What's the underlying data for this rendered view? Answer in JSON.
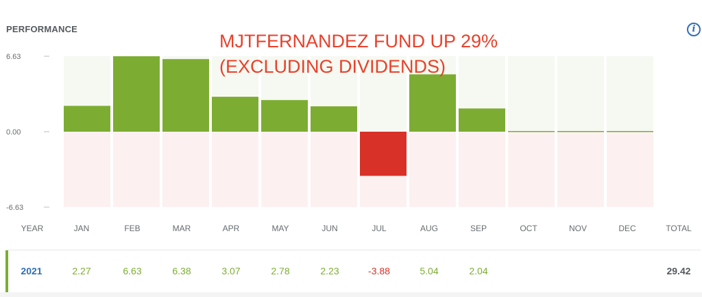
{
  "panel": {
    "title": "PERFORMANCE",
    "info_icon": "info-icon",
    "headline_line1": "MJTFERNANDEZ FUND UP 29%",
    "headline_line2": "(EXCLUDING DIVIDENDS)"
  },
  "colors": {
    "positive": "#7cad32",
    "negative": "#d83127",
    "positive_bg": "#f5f9f1",
    "negative_bg": "#fcf1f0",
    "accent": "#2f6db5",
    "headline": "#e8412b"
  },
  "chart_data": {
    "type": "bar",
    "categories": [
      "JAN",
      "FEB",
      "MAR",
      "APR",
      "MAY",
      "JUN",
      "JUL",
      "AUG",
      "SEP",
      "OCT",
      "NOV",
      "DEC"
    ],
    "values": [
      2.27,
      6.63,
      6.38,
      3.07,
      2.78,
      2.23,
      -3.88,
      5.04,
      2.04,
      0,
      0,
      0
    ],
    "yticks": [
      "6.63",
      "0.00",
      "-6.63"
    ],
    "ylim": [
      -6.63,
      6.63
    ],
    "grid": false
  },
  "table": {
    "headers": [
      "YEAR",
      "JAN",
      "FEB",
      "MAR",
      "APR",
      "MAY",
      "JUN",
      "JUL",
      "AUG",
      "SEP",
      "OCT",
      "NOV",
      "DEC",
      "TOTAL"
    ],
    "row": {
      "year": "2021",
      "months": [
        "2.27",
        "6.63",
        "6.38",
        "3.07",
        "2.78",
        "2.23",
        "-3.88",
        "5.04",
        "2.04",
        "",
        "",
        ""
      ],
      "total": "29.42"
    }
  }
}
